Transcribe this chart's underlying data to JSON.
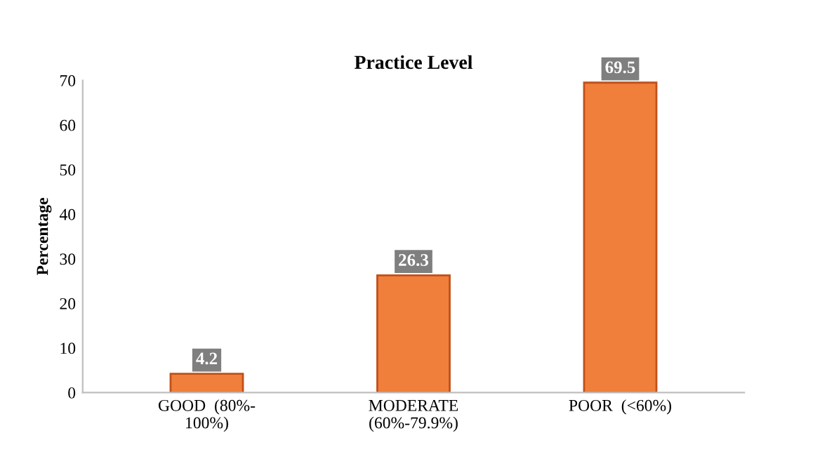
{
  "chart_data": {
    "type": "bar",
    "title": "Practice Level",
    "ylabel": "Percentage",
    "categories": [
      "GOOD  (80%-\n100%)",
      "MODERATE\n(60%-79.9%)",
      "POOR  (<60%)"
    ],
    "values": [
      4.2,
      26.3,
      69.5
    ],
    "color": "#f07f3c",
    "ylim": [
      0,
      70
    ],
    "yticks": [
      0,
      10,
      20,
      30,
      40,
      50,
      60,
      70
    ],
    "grid": false,
    "data_labels": true
  }
}
